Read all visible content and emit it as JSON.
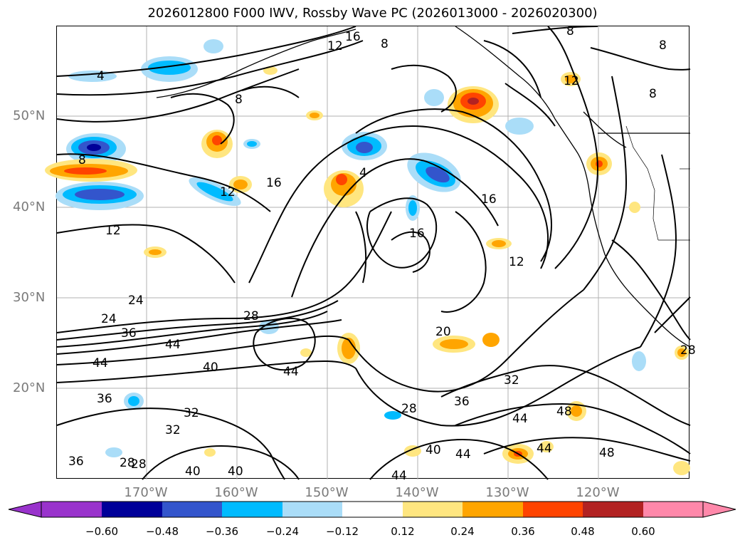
{
  "title": "2026012800 F000 IWV, Rossby Wave PC (2026013000 - 2026020300)",
  "lat_labels": [
    "50°N",
    "40°N",
    "30°N",
    "20°N"
  ],
  "lon_labels": [
    "170°W",
    "160°W",
    "150°W",
    "140°W",
    "130°W",
    "120°W"
  ],
  "colorbar": {
    "ticks": [
      "−0.60",
      "−0.48",
      "−0.36",
      "−0.24",
      "−0.12",
      "0.12",
      "0.24",
      "0.36",
      "0.48",
      "0.60"
    ],
    "colors": [
      "#9933cc",
      "#000099",
      "#3355cc",
      "#00bbff",
      "#aaddf8",
      "#ffffff",
      "#ffe680",
      "#ffa500",
      "#ff4400",
      "#b22222",
      "#ff88aa"
    ]
  },
  "contour_labels": [
    "16",
    "12",
    "8",
    "8",
    "4",
    "8",
    "8",
    "12",
    "8",
    "4",
    "8",
    "12",
    "16",
    "16",
    "16",
    "12",
    "12",
    "24",
    "24",
    "28",
    "36",
    "44",
    "44",
    "40",
    "44",
    "20",
    "32",
    "36",
    "28",
    "36",
    "32",
    "32",
    "28",
    "28",
    "36",
    "40",
    "40",
    "44",
    "44",
    "40",
    "44",
    "48",
    "44",
    "48",
    "28"
  ],
  "shading_colors": {
    "neg_light": "#aaddf8",
    "neg_mid": "#00bbff",
    "neg_dark": "#3355cc",
    "neg_darkest": "#000099",
    "pos_light": "#ffe680",
    "pos_mid": "#ffa500",
    "pos_dark": "#ff4400",
    "pos_darkest": "#b22222"
  }
}
